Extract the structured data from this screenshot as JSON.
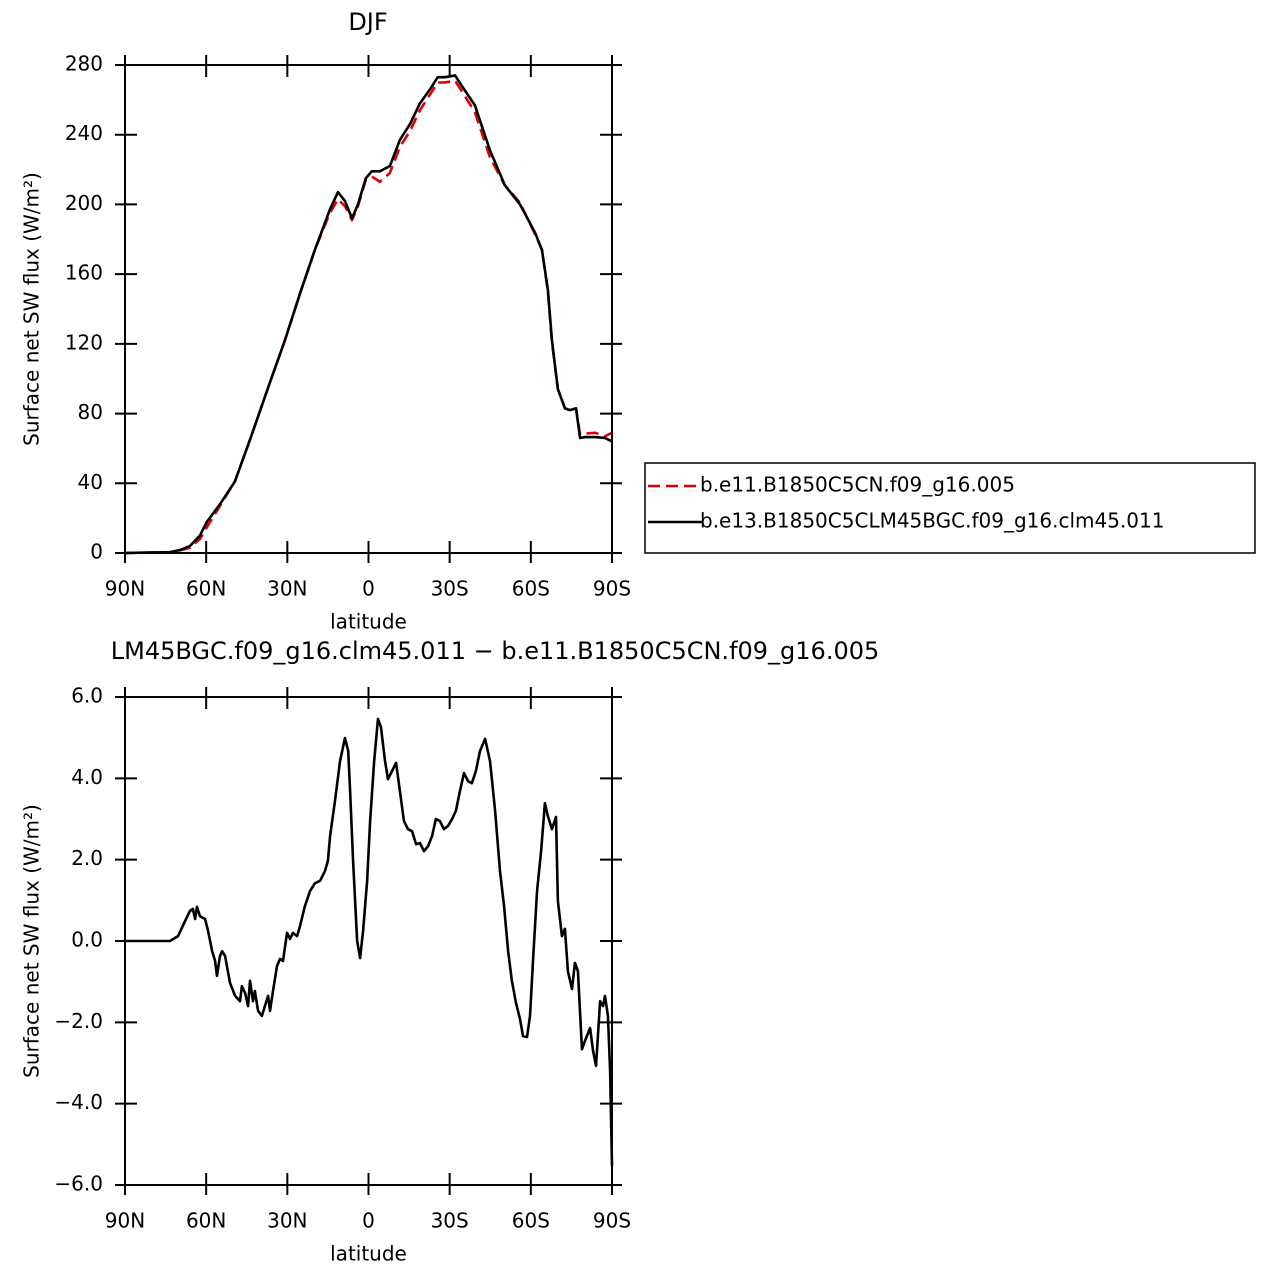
{
  "chart_data": [
    {
      "type": "line",
      "title": "DJF",
      "xlabel": "latitude",
      "ylabel": "Surface net SW flux (W/m²)",
      "xlim": [
        90,
        -90
      ],
      "xticks": [
        {
          "value": 90,
          "label": "90N"
        },
        {
          "value": 60,
          "label": "60N"
        },
        {
          "value": 30,
          "label": "30N"
        },
        0,
        {
          "value": -30,
          "label": "30S"
        },
        {
          "value": -60,
          "label": "60S"
        },
        {
          "value": -90,
          "label": "90S"
        }
      ],
      "ylim": [
        0,
        280
      ],
      "yticks": [
        0,
        40,
        80,
        120,
        160,
        200,
        240,
        280
      ],
      "legend": "right",
      "x": [
        90,
        73.4,
        69.7,
        66.0,
        62.3,
        59.7,
        54.9,
        49.4,
        43.8,
        36.4,
        30.9,
        25.3,
        19.8,
        14.3,
        11.3,
        8.7,
        6.1,
        3.9,
        1.0,
        -1.2,
        -4.2,
        -7.9,
        -11.6,
        -15.3,
        -19.0,
        -22.7,
        -25.6,
        -28.3,
        -32.0,
        -34.5,
        -39.3,
        -44.9,
        -50.4,
        -56.0,
        -61.5,
        -64.1,
        -66.3,
        -67.8,
        -70.0,
        -72.6,
        -74.5,
        -76.7,
        -78.2,
        -80.0,
        -83.7,
        -87.4,
        -90
      ],
      "series": [
        {
          "name": "b.e11.B1850C5CN.f09_g16.005",
          "color": "#e00000",
          "style": "dashed",
          "values": [
            0,
            0.5,
            1.5,
            3,
            8,
            15,
            27,
            41,
            65,
            98,
            122,
            149,
            174,
            195,
            203,
            199,
            191,
            199,
            214,
            216,
            213,
            218,
            233,
            242,
            254,
            263,
            270,
            270,
            271,
            265,
            253,
            227,
            211,
            201,
            183,
            174,
            150,
            121,
            94,
            83,
            82,
            83,
            68,
            68.5,
            69,
            67,
            69
          ]
        },
        {
          "name": "b.e13.B1850C5CLM45BGC.f09_g16.clm45.011",
          "color": "#000000",
          "style": "solid",
          "values": [
            0,
            0.5,
            1.7,
            4,
            10,
            18,
            28,
            41,
            65,
            98,
            122,
            149,
            174,
            197,
            207,
            202,
            192,
            200,
            215,
            219,
            219,
            222,
            237,
            246,
            258,
            266,
            273,
            273,
            274,
            268,
            257,
            231,
            211,
            200,
            184,
            174,
            151,
            122,
            94,
            83,
            82,
            83,
            66,
            66.5,
            66.5,
            66,
            64
          ]
        }
      ]
    },
    {
      "type": "line",
      "title": "LM45BGC.f09_g16.clm45.011 − b.e11.B1850C5CN.f09_g16.005",
      "xlabel": "latitude",
      "ylabel": "Surface net SW flux (W/m²)",
      "xlim": [
        90,
        -90
      ],
      "xticks": [
        {
          "value": 90,
          "label": "90N"
        },
        {
          "value": 60,
          "label": "60N"
        },
        {
          "value": 30,
          "label": "30N"
        },
        0,
        {
          "value": -30,
          "label": "30S"
        },
        {
          "value": -60,
          "label": "60S"
        },
        {
          "value": -90,
          "label": "90S"
        }
      ],
      "ylim": [
        -6,
        6
      ],
      "yticks": [
        {
          "value": -6,
          "label": "−6.0"
        },
        {
          "value": -4,
          "label": "−4.0"
        },
        {
          "value": -2,
          "label": "−2.0"
        },
        {
          "value": 0,
          "label": "0.0"
        },
        {
          "value": 2,
          "label": "2.0"
        },
        {
          "value": 4,
          "label": "4.0"
        },
        {
          "value": 6,
          "label": "6.0"
        }
      ],
      "x": [
        90,
        73.4,
        70.4,
        67.8,
        66.0,
        64.9,
        64.1,
        63.4,
        62.3,
        60.4,
        59.3,
        57.8,
        56.7,
        56.0,
        54.9,
        54.1,
        53.0,
        51.2,
        49.3,
        47.5,
        46.8,
        45.6,
        44.5,
        43.8,
        42.7,
        42.0,
        40.8,
        39.4,
        38.3,
        37.1,
        36.4,
        35.3,
        33.8,
        32.7,
        31.6,
        30.1,
        29.0,
        27.9,
        26.4,
        25.3,
        23.5,
        21.6,
        19.8,
        17.9,
        16.1,
        15.0,
        14.2,
        12.4,
        10.5,
        8.7,
        7.5,
        6.8,
        5.7,
        4.2,
        3.1,
        2.0,
        0.5,
        -0.6,
        -2.1,
        -3.5,
        -4.6,
        -6.1,
        -7.2,
        -8.7,
        -10.2,
        -11.6,
        -13.1,
        -14.6,
        -16.1,
        -17.6,
        -19.0,
        -20.5,
        -22.0,
        -23.5,
        -24.9,
        -26.4,
        -27.9,
        -29.4,
        -30.9,
        -32.3,
        -33.8,
        -35.3,
        -36.8,
        -38.2,
        -39.7,
        -41.2,
        -43.1,
        -44.9,
        -46.8,
        -48.6,
        -50.1,
        -51.6,
        -53.0,
        -54.5,
        -56.0,
        -57.1,
        -58.6,
        -59.7,
        -60.8,
        -62.3,
        -63.8,
        -65.2,
        -66.3,
        -67.8,
        -69.3,
        -70.0,
        -71.5,
        -72.6,
        -73.7,
        -75.2,
        -76.3,
        -77.4,
        -78.9,
        -80.0,
        -81.9,
        -83.0,
        -84.1,
        -85.6,
        -86.7,
        -87.4,
        -88.5,
        -89.3,
        -90.0
      ],
      "series": [
        {
          "color": "#000000",
          "style": "solid",
          "values": [
            0,
            0,
            0.12,
            0.49,
            0.74,
            0.79,
            0.54,
            0.84,
            0.61,
            0.54,
            0.25,
            -0.25,
            -0.49,
            -0.86,
            -0.37,
            -0.25,
            -0.37,
            -1.03,
            -1.35,
            -1.48,
            -1.11,
            -1.28,
            -1.6,
            -0.98,
            -1.48,
            -1.23,
            -1.72,
            -1.84,
            -1.6,
            -1.35,
            -1.72,
            -1.23,
            -0.61,
            -0.44,
            -0.49,
            0.2,
            0.05,
            0.2,
            0.12,
            0.37,
            0.86,
            1.23,
            1.42,
            1.48,
            1.72,
            1.97,
            2.58,
            3.44,
            4.43,
            4.99,
            4.67,
            3.69,
            1.97,
            0,
            -0.42,
            0.25,
            1.48,
            2.95,
            4.43,
            5.46,
            5.26,
            4.43,
            3.98,
            4.18,
            4.38,
            3.69,
            2.95,
            2.75,
            2.7,
            2.38,
            2.41,
            2.21,
            2.33,
            2.58,
            3.0,
            2.95,
            2.75,
            2.83,
            3.0,
            3.2,
            3.69,
            4.13,
            3.93,
            3.88,
            4.18,
            4.67,
            4.97,
            4.43,
            3.2,
            1.72,
            0.86,
            -0.25,
            -0.98,
            -1.52,
            -1.92,
            -2.34,
            -2.36,
            -1.84,
            -0.49,
            1.23,
            2.21,
            3.39,
            3.07,
            2.75,
            3.05,
            0.98,
            0.12,
            0.3,
            -0.74,
            -1.18,
            -0.54,
            -0.74,
            -2.66,
            -2.46,
            -2.14,
            -2.7,
            -3.07,
            -1.48,
            -1.6,
            -1.35,
            -1.84,
            -3.2,
            -5.53
          ]
        }
      ]
    }
  ]
}
